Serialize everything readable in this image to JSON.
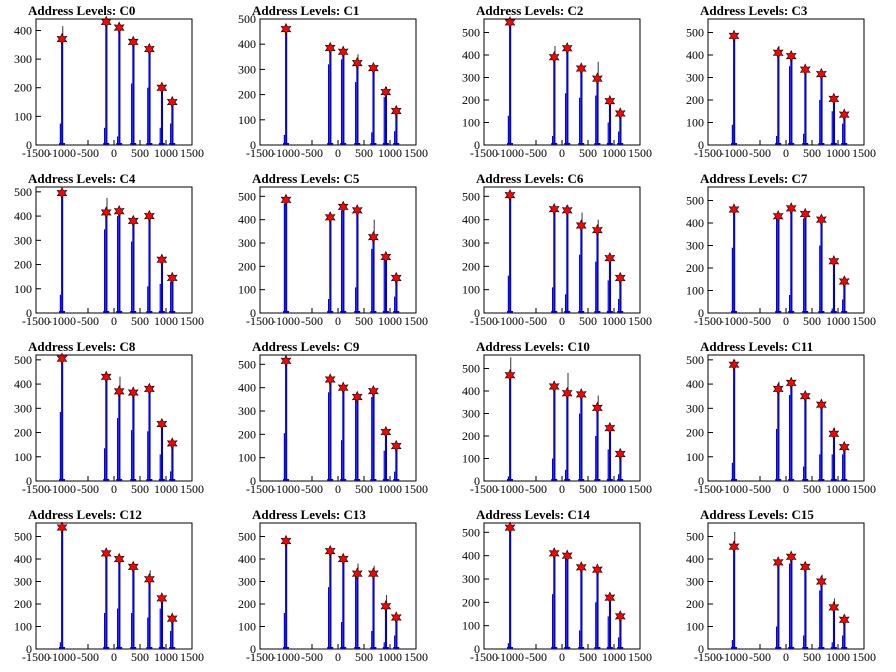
{
  "colors": {
    "histogram": "#0000e6",
    "overflow": "#000000",
    "marker": "#ff0000",
    "marker_edge": "#000000",
    "axis": "#000000"
  },
  "chart_data": [
    {
      "type": "bar",
      "title": "Address Levels: C0",
      "x_ticks": [
        "-1500",
        "-1000",
        "-500",
        "0",
        "500",
        "1000",
        "1500"
      ],
      "xlim": [
        -1500,
        1500
      ],
      "ylim": [
        0,
        440
      ],
      "y_ticks": [
        "0",
        "100",
        "200",
        "300",
        "400"
      ],
      "peaks": [
        {
          "x": -1000,
          "marker": 370,
          "bar": 415,
          "sub": 75
        },
        {
          "x": -150,
          "marker": 430,
          "bar": 430,
          "sub": 60
        },
        {
          "x": 100,
          "marker": 410,
          "bar": 420,
          "sub": 30
        },
        {
          "x": 370,
          "marker": 360,
          "bar": 355,
          "sub": 215
        },
        {
          "x": 680,
          "marker": 335,
          "bar": 340,
          "sub": 200
        },
        {
          "x": 920,
          "marker": 200,
          "bar": 210,
          "sub": 60
        },
        {
          "x": 1120,
          "marker": 150,
          "bar": 155,
          "sub": 75
        }
      ]
    },
    {
      "type": "bar",
      "title": "Address Levels: C1",
      "x_ticks": [
        "-1500",
        "-1000",
        "-500",
        "0",
        "500",
        "1000",
        "1500"
      ],
      "xlim": [
        -1500,
        1500
      ],
      "ylim": [
        0,
        500
      ],
      "y_ticks": [
        "0",
        "100",
        "200",
        "300",
        "400",
        "500"
      ],
      "peaks": [
        {
          "x": -1000,
          "marker": 460,
          "bar": 475,
          "sub": 40
        },
        {
          "x": -150,
          "marker": 385,
          "bar": 390,
          "sub": 320
        },
        {
          "x": 100,
          "marker": 370,
          "bar": 380,
          "sub": 340
        },
        {
          "x": 370,
          "marker": 325,
          "bar": 360,
          "sub": 250
        },
        {
          "x": 680,
          "marker": 305,
          "bar": 300,
          "sub": 50
        },
        {
          "x": 920,
          "marker": 210,
          "bar": 230,
          "sub": 190
        },
        {
          "x": 1120,
          "marker": 135,
          "bar": 120,
          "sub": 55
        }
      ]
    },
    {
      "type": "bar",
      "title": "Address Levels: C2",
      "x_ticks": [
        "-1500",
        "-1000",
        "-500",
        "0",
        "500",
        "1000",
        "1500"
      ],
      "xlim": [
        -1500,
        1500
      ],
      "ylim": [
        0,
        560
      ],
      "y_ticks": [
        "0",
        "100",
        "200",
        "300",
        "400",
        "500"
      ],
      "peaks": [
        {
          "x": -1000,
          "marker": 545,
          "bar": 550,
          "sub": 130
        },
        {
          "x": -150,
          "marker": 390,
          "bar": 440,
          "sub": 40
        },
        {
          "x": 100,
          "marker": 430,
          "bar": 440,
          "sub": 230
        },
        {
          "x": 370,
          "marker": 340,
          "bar": 330,
          "sub": 210
        },
        {
          "x": 680,
          "marker": 295,
          "bar": 370,
          "sub": 220
        },
        {
          "x": 920,
          "marker": 195,
          "bar": 190,
          "sub": 100
        },
        {
          "x": 1120,
          "marker": 140,
          "bar": 150,
          "sub": 60
        }
      ]
    },
    {
      "type": "bar",
      "title": "Address Levels: C3",
      "x_ticks": [
        "-1500",
        "-1000",
        "-500",
        "0",
        "500",
        "1000",
        "1500"
      ],
      "xlim": [
        -1500,
        1500
      ],
      "ylim": [
        0,
        560
      ],
      "y_ticks": [
        "0",
        "100",
        "200",
        "300",
        "400",
        "500"
      ],
      "peaks": [
        {
          "x": -1000,
          "marker": 485,
          "bar": 490,
          "sub": 90
        },
        {
          "x": -150,
          "marker": 410,
          "bar": 440,
          "sub": 40
        },
        {
          "x": 100,
          "marker": 395,
          "bar": 410,
          "sub": 350
        },
        {
          "x": 370,
          "marker": 335,
          "bar": 340,
          "sub": 50
        },
        {
          "x": 680,
          "marker": 315,
          "bar": 330,
          "sub": 200
        },
        {
          "x": 920,
          "marker": 205,
          "bar": 210,
          "sub": 150
        },
        {
          "x": 1120,
          "marker": 135,
          "bar": 140,
          "sub": 95
        }
      ]
    },
    {
      "type": "bar",
      "title": "Address Levels: C4",
      "x_ticks": [
        "-1500",
        "-1000",
        "-500",
        "0",
        "500",
        "1000",
        "1500"
      ],
      "xlim": [
        -1500,
        1500
      ],
      "ylim": [
        0,
        520
      ],
      "y_ticks": [
        "0",
        "100",
        "200",
        "300",
        "400",
        "500"
      ],
      "peaks": [
        {
          "x": -1000,
          "marker": 495,
          "bar": 500,
          "sub": 75
        },
        {
          "x": -150,
          "marker": 415,
          "bar": 475,
          "sub": 345
        },
        {
          "x": 100,
          "marker": 420,
          "bar": 420,
          "sub": 400
        },
        {
          "x": 370,
          "marker": 380,
          "bar": 385,
          "sub": 295
        },
        {
          "x": 680,
          "marker": 400,
          "bar": 410,
          "sub": 110
        },
        {
          "x": 920,
          "marker": 220,
          "bar": 230,
          "sub": 120
        },
        {
          "x": 1120,
          "marker": 145,
          "bar": 150,
          "sub": 130
        }
      ]
    },
    {
      "type": "bar",
      "title": "Address Levels: C5",
      "x_ticks": [
        "-1500",
        "-1000",
        "-500",
        "0",
        "500",
        "1000",
        "1500"
      ],
      "xlim": [
        -1500,
        1500
      ],
      "ylim": [
        0,
        540
      ],
      "y_ticks": [
        "0",
        "100",
        "200",
        "300",
        "400",
        "500"
      ],
      "peaks": [
        {
          "x": -1000,
          "marker": 485,
          "bar": 490,
          "sub": 470
        },
        {
          "x": -150,
          "marker": 410,
          "bar": 420,
          "sub": 60
        },
        {
          "x": 100,
          "marker": 455,
          "bar": 460,
          "sub": 440
        },
        {
          "x": 370,
          "marker": 440,
          "bar": 440,
          "sub": 110
        },
        {
          "x": 680,
          "marker": 325,
          "bar": 400,
          "sub": 275
        },
        {
          "x": 920,
          "marker": 240,
          "bar": 250,
          "sub": 230
        },
        {
          "x": 1120,
          "marker": 150,
          "bar": 160,
          "sub": 70
        }
      ]
    },
    {
      "type": "bar",
      "title": "Address Levels: C6",
      "x_ticks": [
        "-1500",
        "-1000",
        "-500",
        "0",
        "500",
        "1000",
        "1500"
      ],
      "xlim": [
        -1500,
        1500
      ],
      "ylim": [
        0,
        540
      ],
      "y_ticks": [
        "0",
        "100",
        "200",
        "300",
        "400",
        "500"
      ],
      "peaks": [
        {
          "x": -1000,
          "marker": 505,
          "bar": 510,
          "sub": 160
        },
        {
          "x": -150,
          "marker": 445,
          "bar": 460,
          "sub": 110
        },
        {
          "x": 100,
          "marker": 440,
          "bar": 460,
          "sub": 80
        },
        {
          "x": 370,
          "marker": 375,
          "bar": 430,
          "sub": 250
        },
        {
          "x": 680,
          "marker": 355,
          "bar": 400,
          "sub": 220
        },
        {
          "x": 920,
          "marker": 235,
          "bar": 250,
          "sub": 140
        },
        {
          "x": 1120,
          "marker": 150,
          "bar": 160,
          "sub": 60
        }
      ]
    },
    {
      "type": "bar",
      "title": "Address Levels: C7",
      "x_ticks": [
        "-1500",
        "-1000",
        "-500",
        "0",
        "500",
        "1000",
        "1500"
      ],
      "xlim": [
        -1500,
        1500
      ],
      "ylim": [
        0,
        560
      ],
      "y_ticks": [
        "0",
        "100",
        "200",
        "300",
        "400",
        "500"
      ],
      "peaks": [
        {
          "x": -1000,
          "marker": 460,
          "bar": 470,
          "sub": 290
        },
        {
          "x": -150,
          "marker": 430,
          "bar": 440,
          "sub": 420
        },
        {
          "x": 100,
          "marker": 465,
          "bar": 470,
          "sub": 80
        },
        {
          "x": 370,
          "marker": 440,
          "bar": 440,
          "sub": 420
        },
        {
          "x": 680,
          "marker": 415,
          "bar": 420,
          "sub": 300
        },
        {
          "x": 920,
          "marker": 230,
          "bar": 230,
          "sub": 20
        },
        {
          "x": 1120,
          "marker": 140,
          "bar": 160,
          "sub": 60
        }
      ]
    },
    {
      "type": "bar",
      "title": "Address Levels: C8",
      "x_ticks": [
        "-1500",
        "-1000",
        "-500",
        "0",
        "500",
        "1000",
        "1500"
      ],
      "xlim": [
        -1500,
        1500
      ],
      "ylim": [
        0,
        520
      ],
      "y_ticks": [
        "0",
        "100",
        "200",
        "300",
        "400",
        "500"
      ],
      "peaks": [
        {
          "x": -1000,
          "marker": 505,
          "bar": 510,
          "sub": 285
        },
        {
          "x": -150,
          "marker": 430,
          "bar": 420,
          "sub": 135
        },
        {
          "x": 100,
          "marker": 370,
          "bar": 430,
          "sub": 260
        },
        {
          "x": 370,
          "marker": 365,
          "bar": 360,
          "sub": 210
        },
        {
          "x": 680,
          "marker": 380,
          "bar": 375,
          "sub": 205
        },
        {
          "x": 920,
          "marker": 235,
          "bar": 240,
          "sub": 110
        },
        {
          "x": 1120,
          "marker": 155,
          "bar": 165,
          "sub": 40
        }
      ]
    },
    {
      "type": "bar",
      "title": "Address Levels: C9",
      "x_ticks": [
        "-1500",
        "-1000",
        "-500",
        "0",
        "500",
        "1000",
        "1500"
      ],
      "xlim": [
        -1500,
        1500
      ],
      "ylim": [
        0,
        540
      ],
      "y_ticks": [
        "0",
        "100",
        "200",
        "300",
        "400",
        "500"
      ],
      "peaks": [
        {
          "x": -1000,
          "marker": 515,
          "bar": 520,
          "sub": 205
        },
        {
          "x": -150,
          "marker": 435,
          "bar": 440,
          "sub": 380
        },
        {
          "x": 100,
          "marker": 400,
          "bar": 400,
          "sub": 175
        },
        {
          "x": 370,
          "marker": 360,
          "bar": 370,
          "sub": 350
        },
        {
          "x": 680,
          "marker": 385,
          "bar": 380,
          "sub": 360
        },
        {
          "x": 920,
          "marker": 210,
          "bar": 210,
          "sub": 130
        },
        {
          "x": 1120,
          "marker": 150,
          "bar": 150,
          "sub": 40
        }
      ]
    },
    {
      "type": "bar",
      "title": "Address Levels: C10",
      "x_ticks": [
        "-1500",
        "-1000",
        "-500",
        "0",
        "500",
        "1000",
        "1500"
      ],
      "xlim": [
        -1500,
        1500
      ],
      "ylim": [
        0,
        560
      ],
      "y_ticks": [
        "0",
        "100",
        "200",
        "300",
        "400",
        "500"
      ],
      "peaks": [
        {
          "x": -1000,
          "marker": 470,
          "bar": 550,
          "sub": 20
        },
        {
          "x": -150,
          "marker": 420,
          "bar": 430,
          "sub": 100
        },
        {
          "x": 100,
          "marker": 390,
          "bar": 480,
          "sub": 50
        },
        {
          "x": 370,
          "marker": 385,
          "bar": 400,
          "sub": 300
        },
        {
          "x": 680,
          "marker": 325,
          "bar": 380,
          "sub": 200
        },
        {
          "x": 920,
          "marker": 235,
          "bar": 240,
          "sub": 140
        },
        {
          "x": 1120,
          "marker": 120,
          "bar": 130,
          "sub": 30
        }
      ]
    },
    {
      "type": "bar",
      "title": "Address Levels: C11",
      "x_ticks": [
        "-1500",
        "-1000",
        "-500",
        "0",
        "500",
        "1000",
        "1500"
      ],
      "xlim": [
        -1500,
        1500
      ],
      "ylim": [
        0,
        520
      ],
      "y_ticks": [
        "0",
        "100",
        "200",
        "300",
        "400",
        "500"
      ],
      "peaks": [
        {
          "x": -1000,
          "marker": 480,
          "bar": 500,
          "sub": 75
        },
        {
          "x": -150,
          "marker": 380,
          "bar": 410,
          "sub": 215
        },
        {
          "x": 100,
          "marker": 405,
          "bar": 410,
          "sub": 355
        },
        {
          "x": 370,
          "marker": 350,
          "bar": 345,
          "sub": 60
        },
        {
          "x": 680,
          "marker": 315,
          "bar": 330,
          "sub": 110
        },
        {
          "x": 920,
          "marker": 195,
          "bar": 220,
          "sub": 110
        },
        {
          "x": 1120,
          "marker": 140,
          "bar": 140,
          "sub": 110
        }
      ]
    },
    {
      "type": "bar",
      "title": "Address Levels: C12",
      "x_ticks": [
        "-1500",
        "-1000",
        "-500",
        "0",
        "500",
        "1000",
        "1500"
      ],
      "xlim": [
        -1500,
        1500
      ],
      "ylim": [
        0,
        560
      ],
      "y_ticks": [
        "0",
        "100",
        "200",
        "300",
        "400",
        "500"
      ],
      "peaks": [
        {
          "x": -1000,
          "marker": 540,
          "bar": 545,
          "sub": 30
        },
        {
          "x": -150,
          "marker": 425,
          "bar": 430,
          "sub": 160
        },
        {
          "x": 100,
          "marker": 400,
          "bar": 410,
          "sub": 180
        },
        {
          "x": 370,
          "marker": 365,
          "bar": 370,
          "sub": 160
        },
        {
          "x": 680,
          "marker": 310,
          "bar": 350,
          "sub": 140
        },
        {
          "x": 920,
          "marker": 225,
          "bar": 230,
          "sub": 180
        },
        {
          "x": 1120,
          "marker": 135,
          "bar": 150,
          "sub": 80
        }
      ]
    },
    {
      "type": "bar",
      "title": "Address Levels: C13",
      "x_ticks": [
        "-1500",
        "-1000",
        "-500",
        "0",
        "500",
        "1000",
        "1500"
      ],
      "xlim": [
        -1500,
        1500
      ],
      "ylim": [
        0,
        560
      ],
      "y_ticks": [
        "0",
        "100",
        "200",
        "300",
        "400",
        "500"
      ],
      "peaks": [
        {
          "x": -1000,
          "marker": 480,
          "bar": 490,
          "sub": 160
        },
        {
          "x": -150,
          "marker": 435,
          "bar": 440,
          "sub": 275
        },
        {
          "x": 100,
          "marker": 400,
          "bar": 410,
          "sub": 120
        },
        {
          "x": 370,
          "marker": 335,
          "bar": 380,
          "sub": 330
        },
        {
          "x": 680,
          "marker": 335,
          "bar": 370,
          "sub": 80
        },
        {
          "x": 920,
          "marker": 190,
          "bar": 240,
          "sub": 30
        },
        {
          "x": 1120,
          "marker": 140,
          "bar": 150,
          "sub": 60
        }
      ]
    },
    {
      "type": "bar",
      "title": "Address Levels: C14",
      "x_ticks": [
        "-1500",
        "-1000",
        "-500",
        "0",
        "500",
        "1000",
        "1500"
      ],
      "xlim": [
        -1500,
        1500
      ],
      "ylim": [
        0,
        540
      ],
      "y_ticks": [
        "0",
        "100",
        "200",
        "300",
        "400",
        "500"
      ],
      "peaks": [
        {
          "x": -1000,
          "marker": 520,
          "bar": 530,
          "sub": 25
        },
        {
          "x": -150,
          "marker": 410,
          "bar": 415,
          "sub": 235
        },
        {
          "x": 100,
          "marker": 400,
          "bar": 410,
          "sub": 390
        },
        {
          "x": 370,
          "marker": 350,
          "bar": 360,
          "sub": 80
        },
        {
          "x": 680,
          "marker": 340,
          "bar": 350,
          "sub": 200
        },
        {
          "x": 920,
          "marker": 220,
          "bar": 235,
          "sub": 140
        },
        {
          "x": 1120,
          "marker": 140,
          "bar": 150,
          "sub": 50
        }
      ]
    },
    {
      "type": "bar",
      "title": "Address Levels: C15",
      "x_ticks": [
        "-1500",
        "-1000",
        "-500",
        "0",
        "500",
        "1000",
        "1500"
      ],
      "xlim": [
        -1500,
        1500
      ],
      "ylim": [
        0,
        560
      ],
      "y_ticks": [
        "0",
        "100",
        "200",
        "300",
        "400",
        "500"
      ],
      "peaks": [
        {
          "x": -1000,
          "marker": 455,
          "bar": 520,
          "sub": 40
        },
        {
          "x": -150,
          "marker": 385,
          "bar": 400,
          "sub": 100
        },
        {
          "x": 100,
          "marker": 410,
          "bar": 420,
          "sub": 380
        },
        {
          "x": 370,
          "marker": 365,
          "bar": 370,
          "sub": 60
        },
        {
          "x": 680,
          "marker": 300,
          "bar": 330,
          "sub": 260
        },
        {
          "x": 920,
          "marker": 185,
          "bar": 225,
          "sub": 30
        },
        {
          "x": 1120,
          "marker": 130,
          "bar": 150,
          "sub": 60
        }
      ]
    }
  ]
}
